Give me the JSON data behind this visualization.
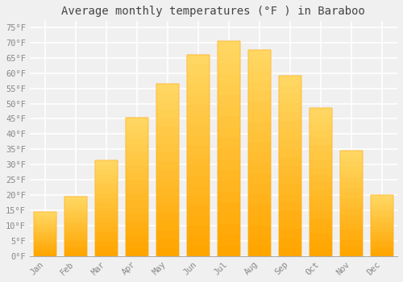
{
  "title": "Average monthly temperatures (°F ) in Baraboo",
  "months": [
    "Jan",
    "Feb",
    "Mar",
    "Apr",
    "May",
    "Jun",
    "Jul",
    "Aug",
    "Sep",
    "Oct",
    "Nov",
    "Dec"
  ],
  "values": [
    14.5,
    19.5,
    31.5,
    45.5,
    56.5,
    66.0,
    70.5,
    67.5,
    59.0,
    48.5,
    34.5,
    20.0
  ],
  "bar_color_top": "#FFD966",
  "bar_color_bottom": "#FFA500",
  "bar_edge_color": "#FFA500",
  "background_color": "#f0f0f0",
  "grid_color": "#ffffff",
  "ylim": [
    0,
    77
  ],
  "yticks": [
    0,
    5,
    10,
    15,
    20,
    25,
    30,
    35,
    40,
    45,
    50,
    55,
    60,
    65,
    70,
    75
  ],
  "title_fontsize": 10,
  "tick_fontsize": 7.5,
  "tick_font_color": "#888888",
  "title_font_color": "#444444",
  "bar_width": 0.75
}
